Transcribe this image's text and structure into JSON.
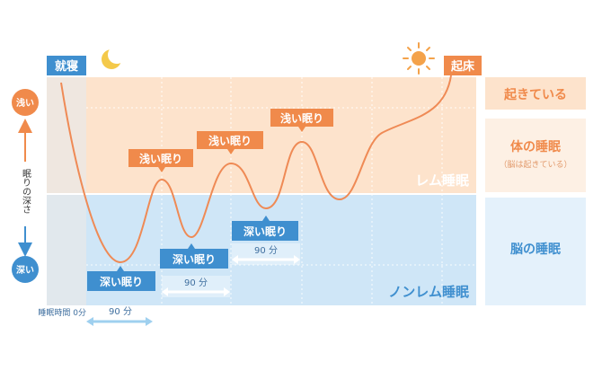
{
  "start_label": "就寝",
  "end_label": "起床",
  "axis": {
    "title": "眠りの深さ",
    "shallow": "浅い",
    "deep": "深い"
  },
  "zones": {
    "rem": "レム睡眠",
    "nonrem": "ノンレム睡眠"
  },
  "legend": {
    "awake": "起きている",
    "body_sleep": "体の睡眠",
    "body_sleep_note": "（脳は起きている）",
    "brain_sleep": "脳の睡眠"
  },
  "time_start_label": "睡眠時間 0分",
  "cycle_label": "90 分",
  "callouts": {
    "shallow": "浅い眠り",
    "deep": "深い眠り"
  },
  "colors": {
    "accent": "#f08a4b",
    "rem_band": "#fde3cc",
    "nonrem_band": "#cfe6f7",
    "blue_box": "#3f8fcf",
    "curve": "#ef8a55",
    "arrow_light": "#9fd0ef"
  },
  "icons": {
    "moon": "moon-icon",
    "sun": "sun-icon"
  }
}
